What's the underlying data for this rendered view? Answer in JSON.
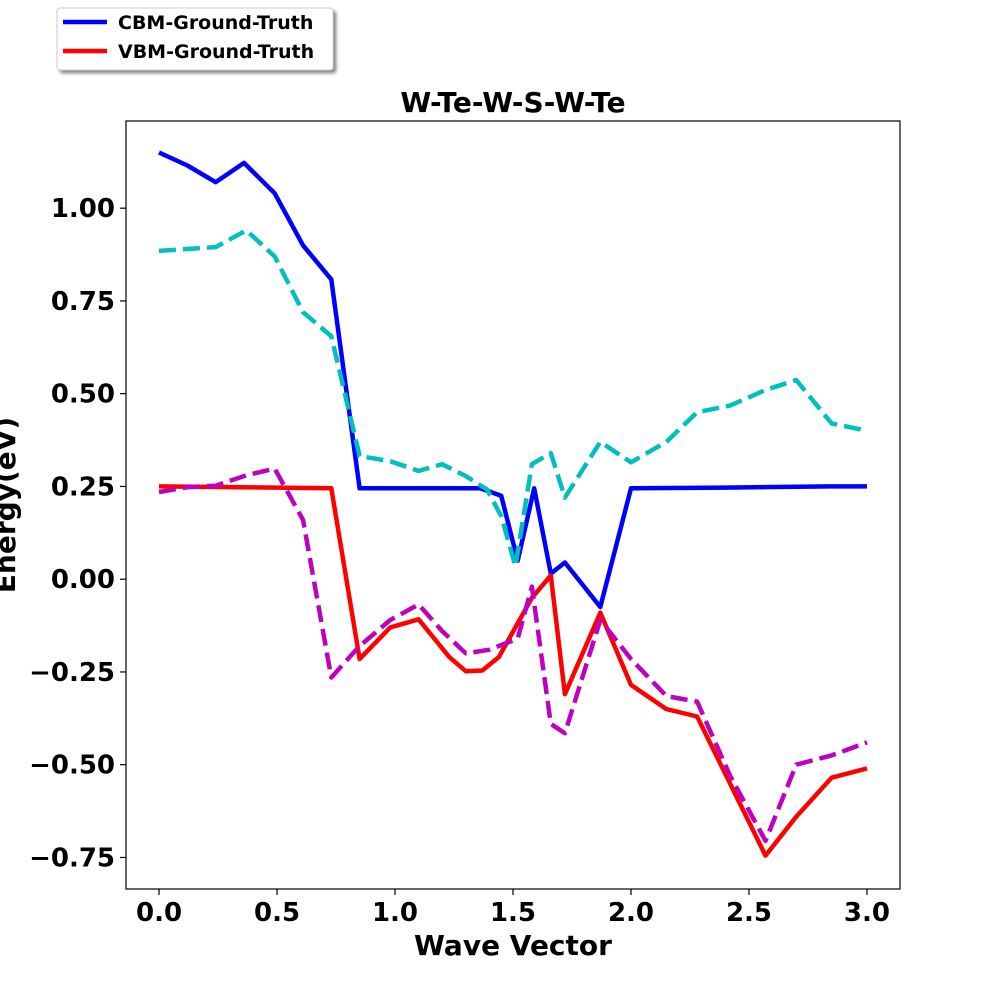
{
  "chart_data": {
    "type": "line",
    "title": "W-Te-W-S-W-Te",
    "xlabel": "Wave Vector",
    "ylabel": "Energy(eV)",
    "xlim": [
      -0.14,
      3.14
    ],
    "ylim": [
      -0.835,
      1.235
    ],
    "xticks": [
      0.0,
      0.5,
      1.0,
      1.5,
      2.0,
      2.5,
      3.0
    ],
    "xtick_labels": [
      "0.0",
      "0.5",
      "1.0",
      "1.5",
      "2.0",
      "2.5",
      "3.0"
    ],
    "yticks": [
      1.0,
      0.75,
      0.5,
      0.25,
      0.0,
      -0.25,
      -0.5,
      -0.75
    ],
    "ytick_labels": [
      "1.00",
      "0.75",
      "0.50",
      "0.25",
      "0.00",
      "−0.25",
      "−0.50",
      "−0.75"
    ],
    "grid": false,
    "legend_position": "top-left, outside plot",
    "series": [
      {
        "name": "CBM-Ground-Truth",
        "color": "#0000ff",
        "dash": "solid",
        "legend": true,
        "points": [
          [
            0.0,
            1.15
          ],
          [
            0.12,
            1.115
          ],
          [
            0.24,
            1.07
          ],
          [
            0.36,
            1.122
          ],
          [
            0.49,
            1.04
          ],
          [
            0.61,
            0.9
          ],
          [
            0.73,
            0.808
          ],
          [
            0.85,
            0.245
          ],
          [
            1.0,
            0.245
          ],
          [
            1.2,
            0.245
          ],
          [
            1.36,
            0.245
          ],
          [
            1.45,
            0.225
          ],
          [
            1.52,
            0.05
          ],
          [
            1.59,
            0.245
          ],
          [
            1.66,
            0.015
          ],
          [
            1.72,
            0.045
          ],
          [
            1.87,
            -0.075
          ],
          [
            2.0,
            0.245
          ],
          [
            2.4,
            0.247
          ],
          [
            2.85,
            0.25
          ],
          [
            3.0,
            0.25
          ]
        ]
      },
      {
        "name": "VBM-Ground-Truth",
        "color": "#ff0000",
        "dash": "solid",
        "legend": true,
        "points": [
          [
            0.0,
            0.25
          ],
          [
            0.35,
            0.248
          ],
          [
            0.73,
            0.245
          ],
          [
            0.85,
            -0.215
          ],
          [
            0.98,
            -0.13
          ],
          [
            1.1,
            -0.108
          ],
          [
            1.23,
            -0.21
          ],
          [
            1.3,
            -0.248
          ],
          [
            1.37,
            -0.246
          ],
          [
            1.44,
            -0.21
          ],
          [
            1.51,
            -0.13
          ],
          [
            1.58,
            -0.05
          ],
          [
            1.66,
            0.01
          ],
          [
            1.72,
            -0.31
          ],
          [
            1.87,
            -0.09
          ],
          [
            2.0,
            -0.285
          ],
          [
            2.15,
            -0.35
          ],
          [
            2.28,
            -0.37
          ],
          [
            2.57,
            -0.745
          ],
          [
            2.7,
            -0.64
          ],
          [
            2.85,
            -0.535
          ],
          [
            3.0,
            -0.51
          ]
        ]
      },
      {
        "color": "#00bfbf",
        "dash": "dashed",
        "legend": false,
        "points": [
          [
            0.0,
            0.885
          ],
          [
            0.12,
            0.89
          ],
          [
            0.24,
            0.895
          ],
          [
            0.37,
            0.94
          ],
          [
            0.49,
            0.87
          ],
          [
            0.61,
            0.72
          ],
          [
            0.73,
            0.655
          ],
          [
            0.85,
            0.332
          ],
          [
            0.98,
            0.318
          ],
          [
            1.1,
            0.292
          ],
          [
            1.2,
            0.31
          ],
          [
            1.3,
            0.278
          ],
          [
            1.39,
            0.242
          ],
          [
            1.45,
            0.17
          ],
          [
            1.51,
            0.035
          ],
          [
            1.58,
            0.31
          ],
          [
            1.66,
            0.34
          ],
          [
            1.72,
            0.22
          ],
          [
            1.87,
            0.37
          ],
          [
            2.0,
            0.315
          ],
          [
            2.15,
            0.37
          ],
          [
            2.28,
            0.45
          ],
          [
            2.42,
            0.468
          ],
          [
            2.57,
            0.51
          ],
          [
            2.7,
            0.537
          ],
          [
            2.85,
            0.42
          ],
          [
            3.0,
            0.4
          ]
        ]
      },
      {
        "color": "#bf00bf",
        "dash": "dashed",
        "legend": false,
        "points": [
          [
            0.0,
            0.235
          ],
          [
            0.12,
            0.248
          ],
          [
            0.24,
            0.252
          ],
          [
            0.37,
            0.28
          ],
          [
            0.49,
            0.298
          ],
          [
            0.61,
            0.16
          ],
          [
            0.73,
            -0.265
          ],
          [
            0.85,
            -0.18
          ],
          [
            0.98,
            -0.11
          ],
          [
            1.1,
            -0.068
          ],
          [
            1.2,
            -0.14
          ],
          [
            1.3,
            -0.2
          ],
          [
            1.4,
            -0.19
          ],
          [
            1.52,
            -0.16
          ],
          [
            1.58,
            -0.02
          ],
          [
            1.66,
            -0.39
          ],
          [
            1.72,
            -0.415
          ],
          [
            1.87,
            -0.11
          ],
          [
            2.0,
            -0.215
          ],
          [
            2.15,
            -0.315
          ],
          [
            2.28,
            -0.33
          ],
          [
            2.42,
            -0.53
          ],
          [
            2.57,
            -0.705
          ],
          [
            2.7,
            -0.5
          ],
          [
            2.85,
            -0.475
          ],
          [
            3.0,
            -0.44
          ]
        ]
      }
    ]
  }
}
